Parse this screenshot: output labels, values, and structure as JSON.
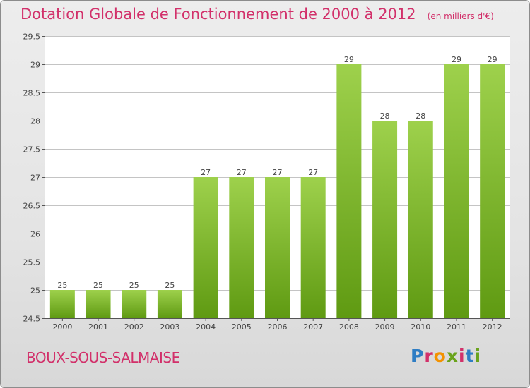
{
  "header": {
    "title": "Dotation Globale de Fonctionnement de 2000 à 2012",
    "subtitle": "(en milliers d'€)"
  },
  "footer": {
    "commune": "BOUX-SOUS-SALMAISE",
    "logo": {
      "text": "Proxiti",
      "letter_colors": [
        "#2e7dc4",
        "#d2306a",
        "#f39200",
        "#6aa31c",
        "#d2306a",
        "#2e7dc4",
        "#6aa31c"
      ]
    }
  },
  "colors": {
    "bar_top": "#9ed14c",
    "bar_bottom": "#5f9a12",
    "grid": "#c4c4c4",
    "axis": "#555555",
    "text": "#444444",
    "plot_background": "#ffffff"
  },
  "chart_data": {
    "type": "bar",
    "categories": [
      "2000",
      "2001",
      "2002",
      "2003",
      "2004",
      "2005",
      "2006",
      "2007",
      "2008",
      "2009",
      "2010",
      "2011",
      "2012"
    ],
    "values": [
      25,
      25,
      25,
      25,
      27,
      27,
      27,
      27,
      29,
      28,
      28,
      29,
      29
    ],
    "data_labels": [
      "25",
      "25",
      "25",
      "25",
      "27",
      "27",
      "27",
      "27",
      "29",
      "28",
      "28",
      "29",
      "29"
    ],
    "ylim": [
      24.5,
      29.5
    ],
    "yticks": [
      24.5,
      25,
      25.5,
      26,
      26.5,
      27,
      27.5,
      28,
      28.5,
      29,
      29.5
    ],
    "ytick_labels": [
      "24.5",
      "25",
      "25.5",
      "26",
      "26.5",
      "27",
      "27.5",
      "28",
      "28.5",
      "29",
      "29.5"
    ],
    "grid": true,
    "legend": "none"
  }
}
